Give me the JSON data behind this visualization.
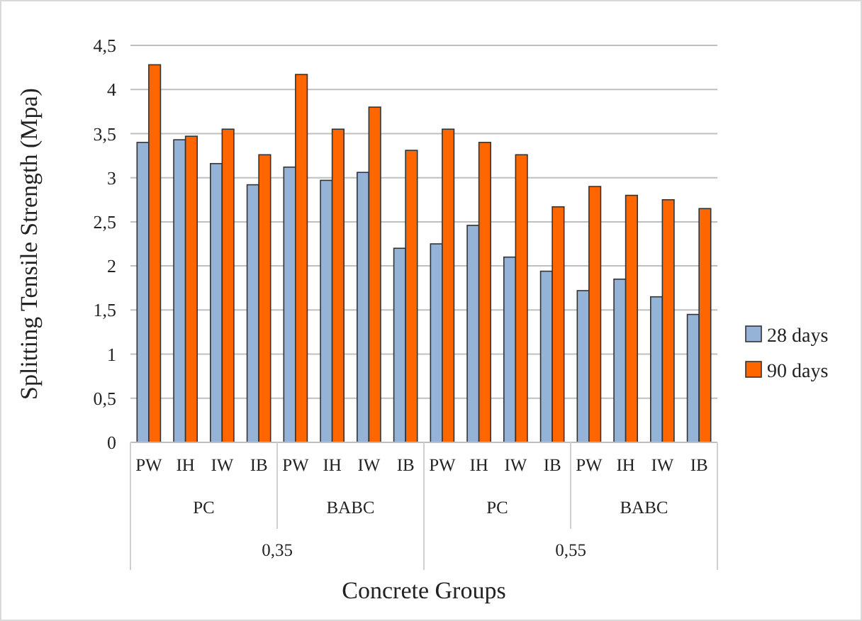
{
  "chart_data": {
    "type": "bar",
    "xlabel": "Concrete Groups",
    "ylabel": "Splitting Tensile Strength (Mpa)",
    "categories": [
      "PW",
      "IH",
      "IW",
      "IB",
      "PW",
      "IH",
      "IW",
      "IB",
      "PW",
      "IH",
      "IW",
      "IB",
      "PW",
      "IH",
      "IW",
      "IB"
    ],
    "annotations": [
      "PC",
      "BABC",
      "PC",
      "BABC",
      "0,35",
      "0,55"
    ],
    "series": [
      {
        "name": "28 days",
        "color": "#95b3d7",
        "values": [
          3.4,
          3.43,
          3.16,
          2.92,
          3.12,
          2.97,
          3.06,
          2.2,
          2.25,
          2.46,
          2.1,
          1.94,
          1.72,
          1.85,
          1.65,
          1.45
        ]
      },
      {
        "name": "90 days",
        "color": "#ff6600",
        "values": [
          4.28,
          3.47,
          3.55,
          3.26,
          4.17,
          3.55,
          3.8,
          3.31,
          3.55,
          3.4,
          3.26,
          2.67,
          2.9,
          2.8,
          2.75,
          2.65
        ]
      }
    ],
    "ylim": [
      0,
      4.5
    ],
    "yticks": [
      {
        "value": 0,
        "label": "0"
      },
      {
        "value": 0.5,
        "label": "0,5"
      },
      {
        "value": 1,
        "label": "1"
      },
      {
        "value": 1.5,
        "label": "1,5"
      },
      {
        "value": 2,
        "label": "2"
      },
      {
        "value": 2.5,
        "label": "2,5"
      },
      {
        "value": 3,
        "label": "3"
      },
      {
        "value": 3.5,
        "label": "3,5"
      },
      {
        "value": 4,
        "label": "4"
      },
      {
        "value": 4.5,
        "label": "4,5"
      }
    ],
    "grid": "y",
    "legend": "right"
  }
}
